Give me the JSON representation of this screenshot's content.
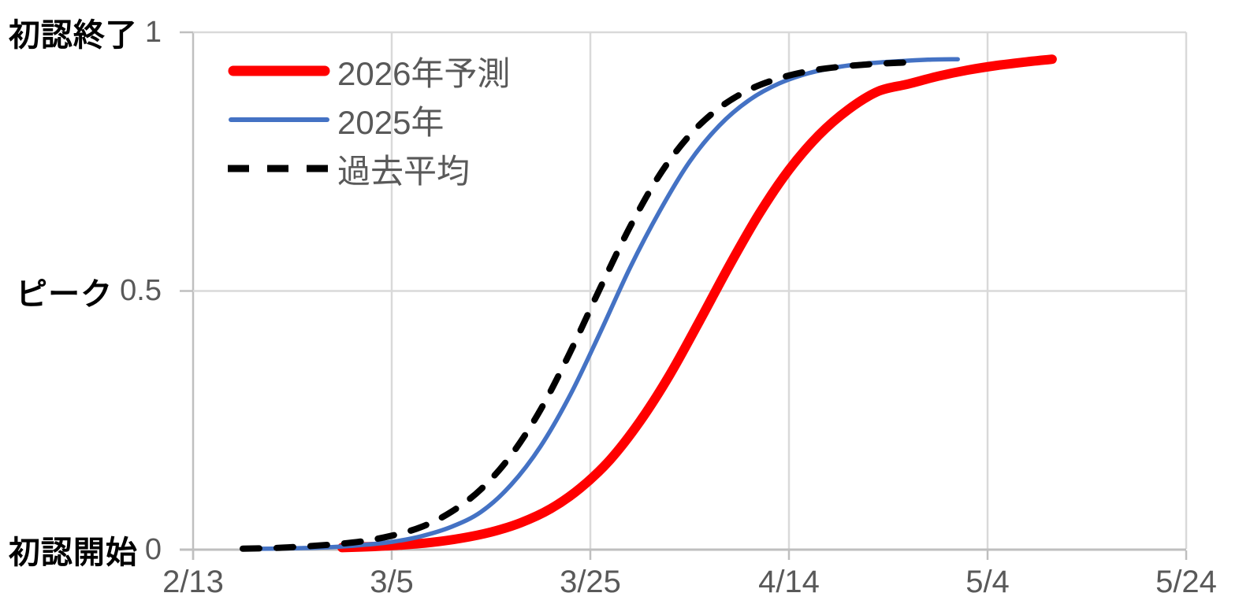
{
  "chart_data": {
    "type": "line",
    "title": "",
    "description_labels": {
      "y_top": "初認終了",
      "y_middle": "ピーク",
      "y_bottom": "初認開始"
    },
    "x_axis": {
      "unit": "date",
      "ticks": [
        "2/13",
        "3/5",
        "3/25",
        "4/14",
        "5/4",
        "5/24"
      ],
      "tick_days": [
        0,
        20,
        40,
        60,
        80,
        100
      ],
      "range_days": [
        0,
        100
      ],
      "grid": true
    },
    "y_axis": {
      "range": [
        0,
        1
      ],
      "grid": true,
      "labels": [
        {
          "name": "初認終了",
          "tick": "1",
          "value": 1
        },
        {
          "name": "ピーク",
          "tick": "0.5",
          "value": 0.5
        },
        {
          "name": "初認開始",
          "tick": "0",
          "value": 0
        }
      ]
    },
    "legend": {
      "position": "top-left-inside"
    },
    "colors": {
      "gridline": "#D9D9D9",
      "axis": "#BFBFBF",
      "tick_text": "#595959",
      "label_text": "#000000"
    },
    "series": [
      {
        "name": "2026年予測",
        "color": "#FF0000",
        "style": "solid",
        "line_width": 12,
        "dates": [
          "2/28",
          "3/3",
          "3/6",
          "3/9",
          "3/12",
          "3/15",
          "3/18",
          "3/21",
          "3/24",
          "3/27",
          "3/30",
          "4/2",
          "4/5",
          "4/8",
          "4/11",
          "4/14",
          "4/17",
          "4/20",
          "4/23",
          "4/26",
          "4/29",
          "5/2",
          "5/5",
          "5/8",
          "5/10"
        ],
        "days": [
          15,
          18,
          21,
          24,
          27,
          30,
          33,
          36,
          39,
          42,
          45,
          48,
          51,
          54,
          57,
          60,
          63,
          66,
          69,
          72,
          75,
          78,
          81,
          84,
          86.5
        ],
        "values": [
          0.004,
          0.006,
          0.009,
          0.014,
          0.022,
          0.034,
          0.052,
          0.079,
          0.119,
          0.174,
          0.248,
          0.338,
          0.442,
          0.549,
          0.649,
          0.734,
          0.801,
          0.851,
          0.886,
          0.9,
          0.915,
          0.927,
          0.936,
          0.943,
          0.948
        ]
      },
      {
        "name": "2025年",
        "color": "#4472C4",
        "style": "solid",
        "line_width": 5.5,
        "dates": [
          "2/18",
          "2/21",
          "2/24",
          "2/27",
          "3/2",
          "3/5",
          "3/8",
          "3/11",
          "3/14",
          "3/17",
          "3/20",
          "3/23",
          "3/26",
          "3/29",
          "4/1",
          "4/4",
          "4/7",
          "4/10",
          "4/13",
          "4/16",
          "4/19",
          "4/22",
          "4/25",
          "4/28",
          "5/1"
        ],
        "days": [
          5,
          8,
          11,
          14,
          17,
          20,
          23,
          26,
          29,
          32,
          35,
          38,
          41,
          44,
          47,
          50,
          53,
          56,
          59,
          62,
          65,
          68,
          71,
          74,
          77
        ],
        "values": [
          0.001,
          0.002,
          0.003,
          0.005,
          0.009,
          0.015,
          0.026,
          0.044,
          0.073,
          0.125,
          0.2,
          0.3,
          0.42,
          0.545,
          0.655,
          0.75,
          0.82,
          0.869,
          0.901,
          0.921,
          0.933,
          0.94,
          0.944,
          0.947,
          0.948
        ]
      },
      {
        "name": "過去平均",
        "color": "#000000",
        "style": "dashed",
        "line_width": 8,
        "dates": [
          "2/18",
          "2/21",
          "2/24",
          "2/27",
          "3/2",
          "3/5",
          "3/8",
          "3/11",
          "3/14",
          "3/17",
          "3/20",
          "3/23",
          "3/26",
          "3/29",
          "4/1",
          "4/4",
          "4/7",
          "4/10",
          "4/13",
          "4/16",
          "4/19",
          "4/22",
          "4/25",
          "4/27"
        ],
        "days": [
          5,
          8,
          11,
          14,
          17,
          20,
          23,
          26,
          29,
          32,
          35,
          38,
          41,
          44,
          47,
          50,
          53,
          56,
          59,
          62,
          65,
          68,
          71,
          73
        ],
        "values": [
          0.002,
          0.003,
          0.006,
          0.01,
          0.016,
          0.027,
          0.044,
          0.073,
          0.117,
          0.182,
          0.271,
          0.383,
          0.506,
          0.624,
          0.725,
          0.801,
          0.854,
          0.889,
          0.911,
          0.925,
          0.933,
          0.938,
          0.941,
          0.942
        ]
      }
    ]
  }
}
